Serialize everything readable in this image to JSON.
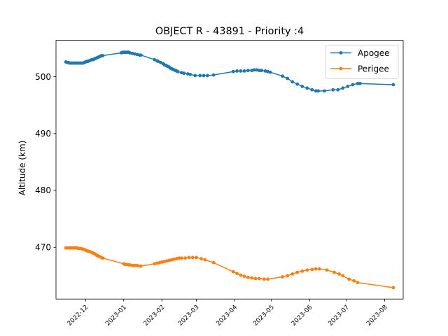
{
  "chart_data": {
    "type": "line",
    "title": "OBJECT R - 43891 - Priority :4",
    "xlabel": "",
    "ylabel": "Altitude (km)",
    "xlim": [
      "2022-11-07",
      "2023-08-16"
    ],
    "ylim": [
      460.9,
      506.4
    ],
    "x_ticks": [
      "2022-12",
      "2023-01",
      "2023-02",
      "2023-03",
      "2023-04",
      "2023-05",
      "2023-06",
      "2023-07",
      "2023-08"
    ],
    "y_ticks": [
      470,
      480,
      490,
      500
    ],
    "grid": false,
    "legend_position": "top-right",
    "colors": {
      "apogee": "#1f77b4",
      "perigee": "#ff7f0e"
    },
    "series": [
      {
        "name": "Apogee",
        "color": "#1f77b4",
        "points": [
          [
            "2022-11-15",
            502.6
          ],
          [
            "2022-11-16",
            502.5
          ],
          [
            "2022-11-17",
            502.5
          ],
          [
            "2022-11-18",
            502.4
          ],
          [
            "2022-11-19",
            502.4
          ],
          [
            "2022-11-20",
            502.4
          ],
          [
            "2022-11-21",
            502.4
          ],
          [
            "2022-11-22",
            502.4
          ],
          [
            "2022-11-23",
            502.4
          ],
          [
            "2022-11-24",
            502.4
          ],
          [
            "2022-11-25",
            502.4
          ],
          [
            "2022-11-26",
            502.4
          ],
          [
            "2022-11-27",
            502.4
          ],
          [
            "2022-11-28",
            502.4
          ],
          [
            "2022-11-29",
            502.4
          ],
          [
            "2022-11-30",
            502.5
          ],
          [
            "2022-12-01",
            502.6
          ],
          [
            "2022-12-02",
            502.7
          ],
          [
            "2022-12-03",
            502.7
          ],
          [
            "2022-12-04",
            502.8
          ],
          [
            "2022-12-05",
            502.9
          ],
          [
            "2022-12-06",
            503.0
          ],
          [
            "2022-12-07",
            503.0
          ],
          [
            "2022-12-08",
            503.1
          ],
          [
            "2022-12-09",
            503.2
          ],
          [
            "2022-12-10",
            503.3
          ],
          [
            "2022-12-11",
            503.4
          ],
          [
            "2022-12-12",
            503.5
          ],
          [
            "2022-12-13",
            503.6
          ],
          [
            "2022-12-14",
            503.7
          ],
          [
            "2022-12-15",
            503.7
          ],
          [
            "2022-12-30",
            504.2
          ],
          [
            "2022-12-31",
            504.3
          ],
          [
            "2023-01-01",
            504.3
          ],
          [
            "2023-01-02",
            504.3
          ],
          [
            "2023-01-03",
            504.3
          ],
          [
            "2023-01-04",
            504.3
          ],
          [
            "2023-01-05",
            504.3
          ],
          [
            "2023-01-06",
            504.2
          ],
          [
            "2023-01-08",
            504.1
          ],
          [
            "2023-01-10",
            504.0
          ],
          [
            "2023-01-12",
            503.9
          ],
          [
            "2023-01-14",
            503.8
          ],
          [
            "2023-01-15",
            503.8
          ],
          [
            "2023-01-26",
            503.0
          ],
          [
            "2023-01-28",
            502.8
          ],
          [
            "2023-01-29",
            502.7
          ],
          [
            "2023-01-31",
            502.5
          ],
          [
            "2023-02-02",
            502.3
          ],
          [
            "2023-02-03",
            502.1
          ],
          [
            "2023-02-04",
            502.0
          ],
          [
            "2023-02-05",
            501.9
          ],
          [
            "2023-02-06",
            501.8
          ],
          [
            "2023-02-07",
            501.7
          ],
          [
            "2023-02-08",
            501.5
          ],
          [
            "2023-02-09",
            501.4
          ],
          [
            "2023-02-10",
            501.3
          ],
          [
            "2023-02-11",
            501.2
          ],
          [
            "2023-02-12",
            501.1
          ],
          [
            "2023-02-13",
            501.0
          ],
          [
            "2023-02-14",
            500.9
          ],
          [
            "2023-02-17",
            500.7
          ],
          [
            "2023-02-19",
            500.6
          ],
          [
            "2023-02-22",
            500.5
          ],
          [
            "2023-02-24",
            500.4
          ],
          [
            "2023-02-28",
            500.2
          ],
          [
            "2023-03-04",
            500.2
          ],
          [
            "2023-03-07",
            500.2
          ],
          [
            "2023-03-10",
            500.2
          ],
          [
            "2023-03-15",
            500.3
          ],
          [
            "2023-03-31",
            500.9
          ],
          [
            "2023-04-03",
            501.0
          ],
          [
            "2023-04-06",
            501.0
          ],
          [
            "2023-04-09",
            501.0
          ],
          [
            "2023-04-12",
            501.1
          ],
          [
            "2023-04-15",
            501.1
          ],
          [
            "2023-04-17",
            501.2
          ],
          [
            "2023-04-19",
            501.2
          ],
          [
            "2023-04-21",
            501.1
          ],
          [
            "2023-04-23",
            501.1
          ],
          [
            "2023-04-26",
            501.0
          ],
          [
            "2023-04-28",
            500.9
          ],
          [
            "2023-04-30",
            500.8
          ],
          [
            "2023-05-10",
            500.1
          ],
          [
            "2023-05-14",
            499.7
          ],
          [
            "2023-05-18",
            499.1
          ],
          [
            "2023-05-22",
            498.7
          ],
          [
            "2023-05-26",
            498.3
          ],
          [
            "2023-05-30",
            498.0
          ],
          [
            "2023-06-03",
            497.7
          ],
          [
            "2023-06-06",
            497.5
          ],
          [
            "2023-06-08",
            497.5
          ],
          [
            "2023-06-13",
            497.5
          ],
          [
            "2023-06-20",
            497.7
          ],
          [
            "2023-06-24",
            497.7
          ],
          [
            "2023-06-28",
            498.0
          ],
          [
            "2023-07-02",
            498.3
          ],
          [
            "2023-07-06",
            498.6
          ],
          [
            "2023-07-10",
            498.8
          ],
          [
            "2023-07-12",
            498.8
          ],
          [
            "2023-08-08",
            498.6
          ]
        ]
      },
      {
        "name": "Perigee",
        "color": "#ff7f0e",
        "points": [
          [
            "2022-11-15",
            469.9
          ],
          [
            "2022-11-16",
            469.9
          ],
          [
            "2022-11-17",
            469.9
          ],
          [
            "2022-11-18",
            469.9
          ],
          [
            "2022-11-19",
            469.9
          ],
          [
            "2022-11-20",
            469.9
          ],
          [
            "2022-11-21",
            469.9
          ],
          [
            "2022-11-22",
            469.9
          ],
          [
            "2022-11-23",
            469.9
          ],
          [
            "2022-11-24",
            469.9
          ],
          [
            "2022-11-25",
            469.8
          ],
          [
            "2022-11-26",
            469.8
          ],
          [
            "2022-11-27",
            469.8
          ],
          [
            "2022-11-28",
            469.7
          ],
          [
            "2022-11-29",
            469.7
          ],
          [
            "2022-11-30",
            469.6
          ],
          [
            "2022-12-01",
            469.5
          ],
          [
            "2022-12-02",
            469.4
          ],
          [
            "2022-12-03",
            469.3
          ],
          [
            "2022-12-04",
            469.3
          ],
          [
            "2022-12-05",
            469.2
          ],
          [
            "2022-12-06",
            469.1
          ],
          [
            "2022-12-07",
            469.0
          ],
          [
            "2022-12-08",
            468.9
          ],
          [
            "2022-12-09",
            468.8
          ],
          [
            "2022-12-10",
            468.6
          ],
          [
            "2022-12-11",
            468.5
          ],
          [
            "2022-12-12",
            468.4
          ],
          [
            "2022-12-13",
            468.3
          ],
          [
            "2022-12-14",
            468.2
          ],
          [
            "2022-12-15",
            468.1
          ],
          [
            "2023-01-01",
            467.1
          ],
          [
            "2023-01-02",
            467.0
          ],
          [
            "2023-01-03",
            467.0
          ],
          [
            "2023-01-05",
            466.9
          ],
          [
            "2023-01-06",
            466.9
          ],
          [
            "2023-01-08",
            466.8
          ],
          [
            "2023-01-10",
            466.8
          ],
          [
            "2023-01-12",
            466.8
          ],
          [
            "2023-01-14",
            466.7
          ],
          [
            "2023-01-15",
            466.7
          ],
          [
            "2023-01-26",
            467.1
          ],
          [
            "2023-01-28",
            467.2
          ],
          [
            "2023-01-30",
            467.3
          ],
          [
            "2023-02-01",
            467.4
          ],
          [
            "2023-02-03",
            467.5
          ],
          [
            "2023-02-05",
            467.6
          ],
          [
            "2023-02-07",
            467.7
          ],
          [
            "2023-02-09",
            467.8
          ],
          [
            "2023-02-11",
            467.9
          ],
          [
            "2023-02-13",
            468.0
          ],
          [
            "2023-02-15",
            468.1
          ],
          [
            "2023-02-17",
            468.1
          ],
          [
            "2023-02-20",
            468.1
          ],
          [
            "2023-02-23",
            468.2
          ],
          [
            "2023-02-26",
            468.2
          ],
          [
            "2023-03-01",
            468.2
          ],
          [
            "2023-03-05",
            468.0
          ],
          [
            "2023-03-08",
            467.8
          ],
          [
            "2023-03-15",
            467.3
          ],
          [
            "2023-03-31",
            465.7
          ],
          [
            "2023-04-03",
            465.4
          ],
          [
            "2023-04-06",
            465.1
          ],
          [
            "2023-04-09",
            464.9
          ],
          [
            "2023-04-12",
            464.7
          ],
          [
            "2023-04-15",
            464.6
          ],
          [
            "2023-04-18",
            464.5
          ],
          [
            "2023-04-21",
            464.5
          ],
          [
            "2023-04-25",
            464.4
          ],
          [
            "2023-04-28",
            464.4
          ],
          [
            "2023-05-10",
            464.8
          ],
          [
            "2023-05-14",
            465.0
          ],
          [
            "2023-05-18",
            465.3
          ],
          [
            "2023-05-22",
            465.6
          ],
          [
            "2023-05-26",
            465.8
          ],
          [
            "2023-05-30",
            466.0
          ],
          [
            "2023-06-03",
            466.1
          ],
          [
            "2023-06-06",
            466.2
          ],
          [
            "2023-06-09",
            466.2
          ],
          [
            "2023-06-15",
            466.0
          ],
          [
            "2023-06-21",
            465.6
          ],
          [
            "2023-06-25",
            465.3
          ],
          [
            "2023-06-28",
            465.0
          ],
          [
            "2023-07-03",
            464.4
          ],
          [
            "2023-07-07",
            464.1
          ],
          [
            "2023-07-10",
            463.8
          ],
          [
            "2023-08-08",
            462.9
          ]
        ]
      }
    ]
  }
}
